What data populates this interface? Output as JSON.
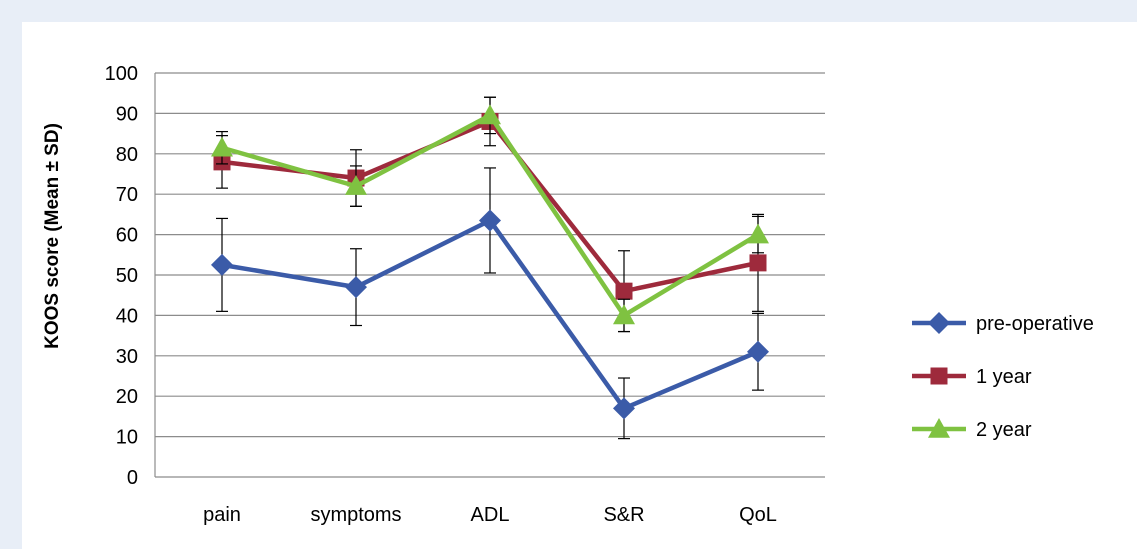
{
  "chart_data": {
    "type": "line",
    "title": "",
    "xlabel": "",
    "ylabel": "KOOS score (Mean ± SD)",
    "categories": [
      "pain",
      "symptoms",
      "ADL",
      "S&R",
      "QoL"
    ],
    "ylim": [
      0,
      100
    ],
    "yticks": [
      0,
      10,
      20,
      30,
      40,
      50,
      60,
      70,
      80,
      90,
      100
    ],
    "grid": true,
    "legend_position": "right",
    "series": [
      {
        "name": "pre-operative",
        "color": "#3b5ba8",
        "marker": "diamond",
        "values": [
          52.5,
          47,
          63.5,
          17,
          31
        ],
        "sd": [
          11.5,
          9.5,
          13,
          7.5,
          9.5
        ]
      },
      {
        "name": "1 year",
        "color": "#9e2a3c",
        "marker": "square",
        "values": [
          78,
          74,
          88,
          46,
          53
        ],
        "sd": [
          6.5,
          7,
          6,
          10,
          12
        ]
      },
      {
        "name": "2 year",
        "color": "#7fc241",
        "marker": "triangle",
        "values": [
          81.5,
          72,
          89.5,
          40,
          60
        ],
        "sd": [
          4,
          5,
          4.5,
          4,
          4.5
        ]
      }
    ]
  }
}
